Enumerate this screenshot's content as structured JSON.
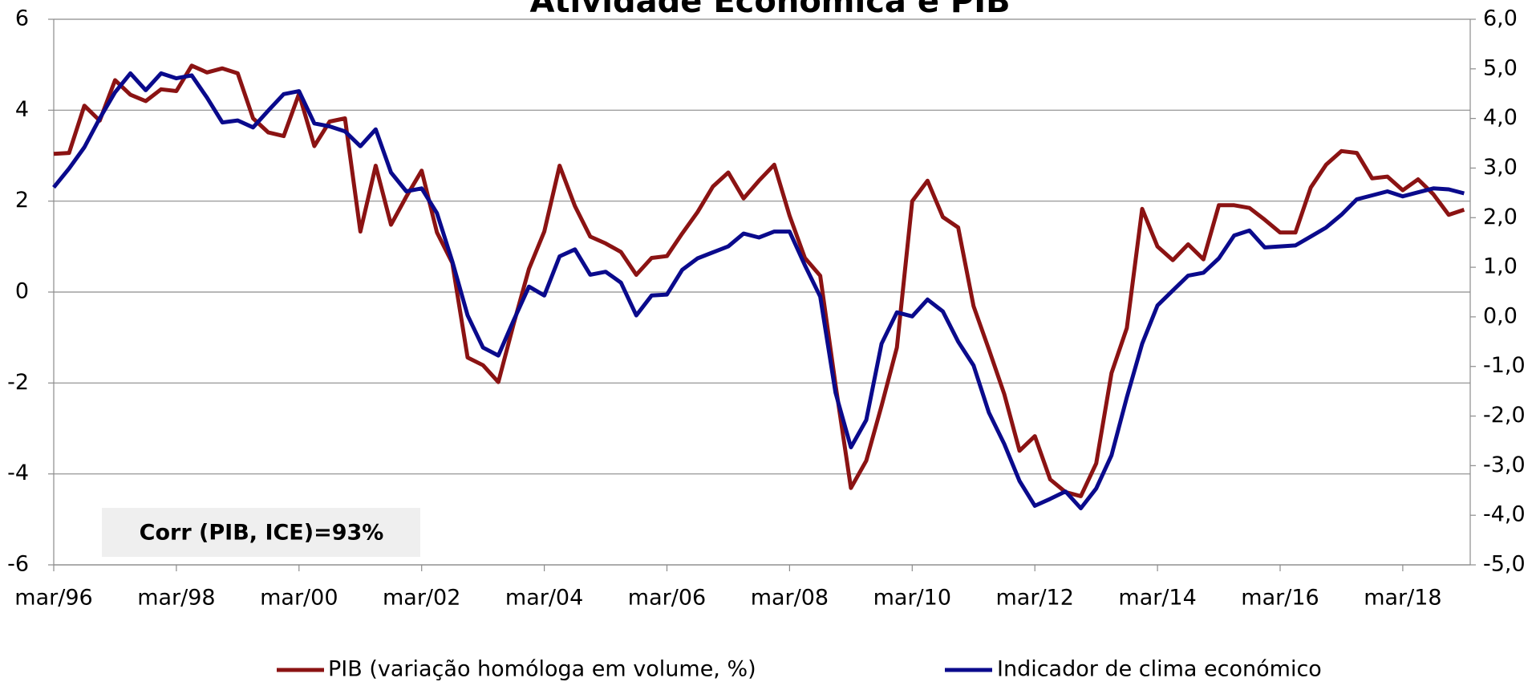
{
  "chart_data": {
    "type": "line",
    "title": "Atividade Económica e PIB",
    "annotation": "Corr (PIB, ICE)=93%",
    "categories": [
      "mar/96",
      null,
      null,
      null,
      null,
      null,
      null,
      null,
      "mar/98",
      null,
      null,
      null,
      null,
      null,
      null,
      null,
      "mar/00",
      null,
      null,
      null,
      null,
      null,
      null,
      null,
      "mar/02",
      null,
      null,
      null,
      null,
      null,
      null,
      null,
      "mar/04",
      null,
      null,
      null,
      null,
      null,
      null,
      null,
      "mar/06",
      null,
      null,
      null,
      null,
      null,
      null,
      null,
      "mar/08",
      null,
      null,
      null,
      null,
      null,
      null,
      null,
      "mar/10",
      null,
      null,
      null,
      null,
      null,
      null,
      null,
      "mar/12",
      null,
      null,
      null,
      null,
      null,
      null,
      null,
      "mar/14",
      null,
      null,
      null,
      null,
      null,
      null,
      null,
      "mar/16",
      null,
      null,
      null,
      null,
      null,
      null,
      null,
      "mar/18",
      null,
      null,
      null,
      null
    ],
    "series": [
      {
        "name": "PIB (variação homóloga em volume, %)",
        "color": "#8B1313",
        "axis": "y",
        "values": [
          3.04,
          3.06,
          4.1,
          3.77,
          4.66,
          4.34,
          4.2,
          4.46,
          4.42,
          4.98,
          4.83,
          4.92,
          4.81,
          3.82,
          3.51,
          3.43,
          4.36,
          3.21,
          3.75,
          3.82,
          1.33,
          2.78,
          1.48,
          2.1,
          2.67,
          1.31,
          0.64,
          -1.44,
          -1.61,
          -1.98,
          -0.7,
          0.51,
          1.33,
          2.78,
          1.89,
          1.22,
          1.07,
          0.88,
          0.38,
          0.75,
          0.79,
          1.29,
          1.76,
          2.32,
          2.63,
          2.06,
          2.45,
          2.8,
          1.68,
          0.75,
          0.36,
          -2.04,
          -4.31,
          -3.71,
          -2.5,
          -1.22,
          2.0,
          2.45,
          1.65,
          1.42,
          -0.31,
          -1.26,
          -2.24,
          -3.49,
          -3.17,
          -4.12,
          -4.4,
          -4.49,
          -3.77,
          -1.78,
          -0.79,
          1.83,
          1.0,
          0.7,
          1.05,
          0.72,
          1.91,
          1.91,
          1.85,
          1.59,
          1.31,
          1.31,
          2.3,
          2.8,
          3.1,
          3.06,
          2.5,
          2.54,
          2.24,
          2.48,
          2.15,
          1.7,
          1.81
        ]
      },
      {
        "name": "Indicador de clima económico",
        "color": "#0A0A8C",
        "axis": "y2",
        "values": [
          2.61,
          2.99,
          3.42,
          4.0,
          4.53,
          4.91,
          4.57,
          4.91,
          4.81,
          4.87,
          4.42,
          3.92,
          3.96,
          3.82,
          4.16,
          4.49,
          4.55,
          3.9,
          3.84,
          3.74,
          3.44,
          3.78,
          2.91,
          2.53,
          2.59,
          2.09,
          1.12,
          0.03,
          -0.62,
          -0.78,
          -0.07,
          0.61,
          0.43,
          1.22,
          1.36,
          0.85,
          0.91,
          0.69,
          0.03,
          0.43,
          0.45,
          0.95,
          1.18,
          1.3,
          1.42,
          1.68,
          1.6,
          1.72,
          1.72,
          1.04,
          0.41,
          -1.53,
          -2.63,
          -2.08,
          -0.54,
          0.09,
          0.01,
          0.35,
          0.11,
          -0.5,
          -0.98,
          -1.93,
          -2.56,
          -3.31,
          -3.81,
          -3.67,
          -3.52,
          -3.86,
          -3.46,
          -2.79,
          -1.62,
          -0.54,
          0.23,
          0.53,
          0.83,
          0.89,
          1.18,
          1.64,
          1.74,
          1.4,
          1.42,
          1.44,
          1.62,
          1.8,
          2.06,
          2.37,
          2.45,
          2.53,
          2.43,
          2.51,
          2.59,
          2.57,
          2.49
        ]
      }
    ],
    "ylim": [
      -6,
      6
    ],
    "yticks": [
      -6,
      -4,
      -2,
      0,
      2,
      4,
      6
    ],
    "y2lim": [
      -5,
      6
    ],
    "y2ticks": [
      {
        "value": -5,
        "label": "-5,0"
      },
      {
        "value": -4,
        "label": "-4,0"
      },
      {
        "value": -3,
        "label": "-3,0"
      },
      {
        "value": -2,
        "label": "-2,0"
      },
      {
        "value": -1,
        "label": "-1,0"
      },
      {
        "value": 0,
        "label": "0,0"
      },
      {
        "value": 1,
        "label": "1,0"
      },
      {
        "value": 2,
        "label": "2,0"
      },
      {
        "value": 3,
        "label": "3,0"
      },
      {
        "value": 4,
        "label": "4,0"
      },
      {
        "value": 5,
        "label": "5,0"
      },
      {
        "value": 6,
        "label": "6,0"
      }
    ],
    "grid": true
  }
}
